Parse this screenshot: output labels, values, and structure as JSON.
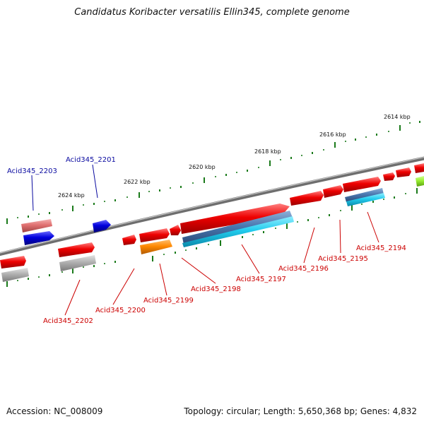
{
  "title": "Candidatus Koribacter versatilis Ellin345, complete genome",
  "footer": {
    "accession": "Accession: NC_008009",
    "summary": "Topology: circular; Length: 5,650,368 bp; Genes: 4,832"
  },
  "ticks": [
    {
      "label": "2614 kbp"
    },
    {
      "label": "2616 kbp"
    },
    {
      "label": "2618 kbp"
    },
    {
      "label": "2620 kbp"
    },
    {
      "label": "2622 kbp"
    },
    {
      "label": "2624 kbp"
    }
  ],
  "genes": [
    {
      "locus": "Acid345_2203",
      "strand": "forward"
    },
    {
      "locus": "Acid345_2201",
      "strand": "forward"
    },
    {
      "locus": "Acid345_2202",
      "strand": "reverse"
    },
    {
      "locus": "Acid345_2200",
      "strand": "reverse"
    },
    {
      "locus": "Acid345_2199",
      "strand": "reverse"
    },
    {
      "locus": "Acid345_2198",
      "strand": "reverse"
    },
    {
      "locus": "Acid345_2197",
      "strand": "reverse"
    },
    {
      "locus": "Acid345_2196",
      "strand": "reverse"
    },
    {
      "locus": "Acid345_2195",
      "strand": "reverse"
    },
    {
      "locus": "Acid345_2194",
      "strand": "reverse"
    }
  ],
  "colors": {
    "forward_label": "#0a0aa0",
    "reverse_label": "#cc0000",
    "backbone": "#777777",
    "tick": "#1a7a1a",
    "gene_red": "#ee0000",
    "gene_blue": "#0000dd",
    "gene_pink": "#e07070",
    "gene_gray": "#b0b0b0",
    "gene_orange": "#ff8800",
    "gene_steel": "#4a78b0",
    "gene_cyan": "#22ccee",
    "gene_lime": "#99ee33"
  }
}
